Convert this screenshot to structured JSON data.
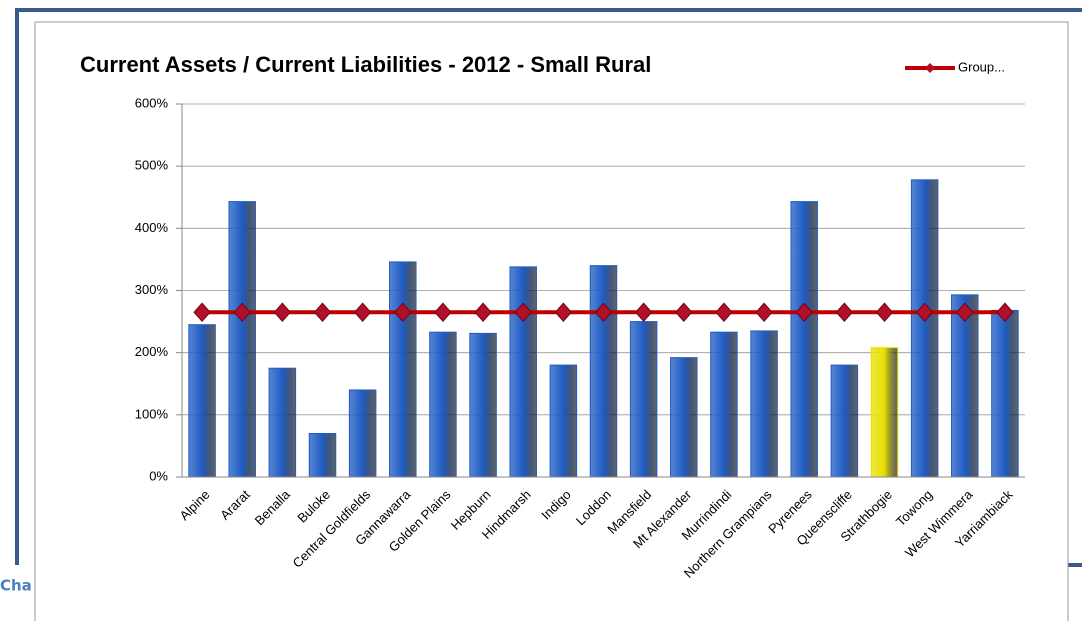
{
  "background_text": "Cha",
  "chart_data": {
    "type": "bar",
    "title": "Current Assets / Current Liabilities - 2012 - Small Rural",
    "categories": [
      "Alpine",
      "Ararat",
      "Benalla",
      "Buloke",
      "Central Goldfields",
      "Gannawarra",
      "Golden Plains",
      "Hepburn",
      "Hindmarsh",
      "Indigo",
      "Loddon",
      "Mansfield",
      "Mt Alexander",
      "Murrindindi",
      "Northern Grampians",
      "Pyrenees",
      "Queenscliffe",
      "Strathbogie",
      "Towong",
      "West Wimmera",
      "Yarriambiack"
    ],
    "values": [
      245,
      443,
      175,
      70,
      140,
      346,
      233,
      231,
      338,
      180,
      340,
      250,
      192,
      233,
      235,
      443,
      180,
      208,
      478,
      293,
      268
    ],
    "colors": [
      "#1f5cc4",
      "#1f5cc4",
      "#1f5cc4",
      "#1f5cc4",
      "#1f5cc4",
      "#1f5cc4",
      "#1f5cc4",
      "#1f5cc4",
      "#1f5cc4",
      "#1f5cc4",
      "#1f5cc4",
      "#1f5cc4",
      "#1f5cc4",
      "#1f5cc4",
      "#1f5cc4",
      "#1f5cc4",
      "#1f5cc4",
      "#e8e000",
      "#1f5cc4",
      "#1f5cc4",
      "#1f5cc4"
    ],
    "series": [
      {
        "name": "Group...",
        "color": "#c00000",
        "values": [
          265,
          265,
          265,
          265,
          265,
          265,
          265,
          265,
          265,
          265,
          265,
          265,
          265,
          265,
          265,
          265,
          265,
          265,
          265,
          265,
          265
        ]
      }
    ],
    "ylim": [
      0,
      600
    ],
    "yticks": [
      {
        "value": 0,
        "label": "0%"
      },
      {
        "value": 100,
        "label": "100%"
      },
      {
        "value": 200,
        "label": "200%"
      },
      {
        "value": 300,
        "label": "300%"
      },
      {
        "value": 400,
        "label": "400%"
      },
      {
        "value": 500,
        "label": "500%"
      },
      {
        "value": 600,
        "label": "600%"
      }
    ],
    "grid": true,
    "legend": "top-right"
  }
}
